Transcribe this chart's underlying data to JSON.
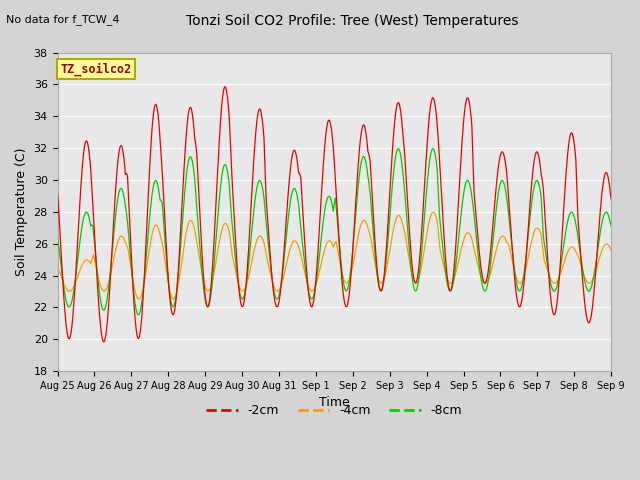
{
  "title": "Tonzi Soil CO2 Profile: Tree (West) Temperatures",
  "subtitle": "No data for f_TCW_4",
  "xlabel": "Time",
  "ylabel": "Soil Temperature (C)",
  "ylim": [
    18,
    38
  ],
  "yticks": [
    18,
    20,
    22,
    24,
    26,
    28,
    30,
    32,
    34,
    36,
    38
  ],
  "legend_label": "TZ_soilco2",
  "series_labels": [
    "-2cm",
    "-4cm",
    "-8cm"
  ],
  "series_colors": [
    "#ee0000",
    "#ff9900",
    "#00cc00"
  ],
  "fig_bg_color": "#d4d4d4",
  "plot_bg_color": "#e8e8e8",
  "x_tick_labels": [
    "Aug 25",
    "Aug 26",
    "Aug 27",
    "Aug 28",
    "Aug 29",
    "Aug 30",
    "Aug 31",
    "Sep 1",
    "Sep 2",
    "Sep 3",
    "Sep 4",
    "Sep 5",
    "Sep 6",
    "Sep 7",
    "Sep 8",
    "Sep 9"
  ],
  "n_days": 16,
  "n_per_day": 48,
  "red_peaks": [
    32.5,
    20.0,
    32.2,
    19.8,
    34.8,
    20.0,
    34.6,
    21.5,
    35.9,
    22.0,
    34.5,
    22.0,
    31.9,
    22.0,
    33.8,
    22.0,
    33.5,
    22.0,
    34.9,
    23.0,
    35.2,
    23.5,
    35.2,
    23.0,
    31.8,
    23.5,
    31.8,
    22.0,
    33.0,
    21.5,
    30.5,
    21.0
  ],
  "orange_peaks": [
    25.0,
    23.0,
    26.5,
    23.0,
    27.2,
    22.5,
    27.5,
    22.5,
    27.3,
    23.0,
    26.5,
    23.0,
    26.2,
    23.0,
    26.2,
    23.0,
    27.5,
    23.5,
    27.8,
    23.5,
    28.0,
    23.5,
    26.7,
    23.5,
    26.5,
    23.5,
    27.0,
    23.5,
    25.8,
    23.5,
    26.0,
    23.5
  ],
  "green_peaks": [
    28.0,
    22.0,
    29.5,
    21.8,
    30.0,
    21.5,
    31.5,
    22.0,
    31.0,
    22.0,
    30.0,
    22.5,
    29.5,
    22.5,
    29.0,
    22.5,
    31.5,
    23.0,
    32.0,
    23.0,
    32.0,
    23.0,
    30.0,
    23.0,
    30.0,
    23.0,
    30.0,
    23.0,
    28.0,
    23.0,
    28.0,
    23.0
  ]
}
